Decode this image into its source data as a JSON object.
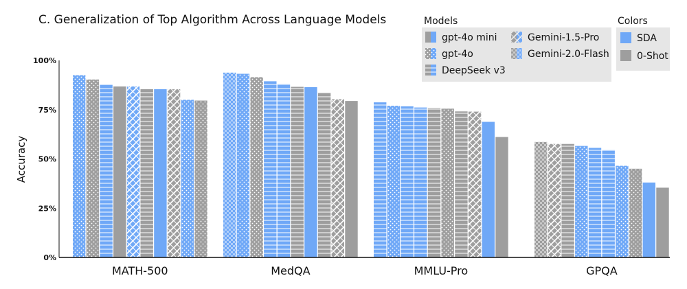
{
  "chart_data": {
    "type": "bar",
    "title": "C.  Generalization of Top Algorithm Across Language Models",
    "ylabel": "Accuracy",
    "xlabel": "",
    "ylim": [
      0,
      100
    ],
    "yticks": [
      0,
      25,
      50,
      75,
      100
    ],
    "ytick_labels": [
      "0%",
      "25%",
      "50%",
      "75%",
      "100%"
    ],
    "categories": [
      "MATH-500",
      "MedQA",
      "MMLU-Pro",
      "GPQA"
    ],
    "colors": {
      "SDA": "#6fa8f7",
      "0-Shot": "#9e9e9e"
    },
    "legend": {
      "models_title": "Models",
      "colors_title": "Colors",
      "models": [
        {
          "name": "gpt-4o mini",
          "pattern": "solid"
        },
        {
          "name": "Gemini-1.5-Pro",
          "pattern": "diag"
        },
        {
          "name": "gpt-4o",
          "pattern": "dots"
        },
        {
          "name": "Gemini-2.0-Flash",
          "pattern": "checker"
        },
        {
          "name": "DeepSeek v3",
          "pattern": "hlines"
        }
      ],
      "colors": [
        {
          "name": "SDA",
          "color": "#6fa8f7"
        },
        {
          "name": "0-Shot",
          "color": "#9e9e9e"
        }
      ],
      "placement": "top-right"
    },
    "groups": [
      {
        "category": "MATH-500",
        "bars": [
          {
            "model": "gpt-4o",
            "method": "SDA",
            "value": 92.5
          },
          {
            "model": "gpt-4o",
            "method": "0-Shot",
            "value": 90.3
          },
          {
            "model": "DeepSeek v3",
            "method": "SDA",
            "value": 87.6
          },
          {
            "model": "gpt-4o mini",
            "method": "0-Shot",
            "value": 86.8
          },
          {
            "model": "Gemini-1.5-Pro",
            "method": "SDA",
            "value": 86.8
          },
          {
            "model": "DeepSeek v3",
            "method": "0-Shot",
            "value": 85.4
          },
          {
            "model": "gpt-4o mini",
            "method": "SDA",
            "value": 85.4
          },
          {
            "model": "Gemini-1.5-Pro",
            "method": "0-Shot",
            "value": 85.4
          },
          {
            "model": "gpt-4o",
            "method": "SDA",
            "value": 80.0
          },
          {
            "model": "gpt-4o",
            "method": "0-Shot",
            "value": 79.6
          }
        ]
      },
      {
        "category": "MedQA",
        "bars": [
          {
            "model": "Gemini-2.0-Flash",
            "method": "SDA",
            "value": 93.8
          },
          {
            "model": "gpt-4o",
            "method": "SDA",
            "value": 93.2
          },
          {
            "model": "gpt-4o",
            "method": "0-Shot",
            "value": 91.5
          },
          {
            "model": "DeepSeek v3",
            "method": "SDA",
            "value": 89.4
          },
          {
            "model": "DeepSeek v3",
            "method": "SDA",
            "value": 88.1
          },
          {
            "model": "DeepSeek v3",
            "method": "0-Shot",
            "value": 86.6
          },
          {
            "model": "gpt-4o mini",
            "method": "SDA",
            "value": 86.4
          },
          {
            "model": "DeepSeek v3",
            "method": "0-Shot",
            "value": 83.7
          },
          {
            "model": "Gemini-1.5-Pro",
            "method": "0-Shot",
            "value": 80.3
          },
          {
            "model": "gpt-4o mini",
            "method": "0-Shot",
            "value": 79.4
          }
        ]
      },
      {
        "category": "MMLU-Pro",
        "bars": [
          {
            "model": "DeepSeek v3",
            "method": "SDA",
            "value": 78.7
          },
          {
            "model": "gpt-4o",
            "method": "SDA",
            "value": 77.0
          },
          {
            "model": "DeepSeek v3",
            "method": "SDA",
            "value": 76.7
          },
          {
            "model": "DeepSeek v3",
            "method": "SDA",
            "value": 76.1
          },
          {
            "model": "DeepSeek v3",
            "method": "0-Shot",
            "value": 75.8
          },
          {
            "model": "gpt-4o",
            "method": "0-Shot",
            "value": 75.5
          },
          {
            "model": "DeepSeek v3",
            "method": "0-Shot",
            "value": 74.1
          },
          {
            "model": "Gemini-1.5-Pro",
            "method": "0-Shot",
            "value": 74.0
          },
          {
            "model": "gpt-4o mini",
            "method": "SDA",
            "value": 68.8
          },
          {
            "model": "gpt-4o mini",
            "method": "0-Shot",
            "value": 61.1
          }
        ]
      },
      {
        "category": "GPQA",
        "bars": [
          {
            "model": "Gemini-2.0-Flash",
            "method": "0-Shot",
            "value": 58.6
          },
          {
            "model": "Gemini-1.5-Pro",
            "method": "0-Shot",
            "value": 57.6
          },
          {
            "model": "DeepSeek v3",
            "method": "0-Shot",
            "value": 57.6
          },
          {
            "model": "gpt-4o",
            "method": "SDA",
            "value": 56.6
          },
          {
            "model": "DeepSeek v3",
            "method": "SDA",
            "value": 55.6
          },
          {
            "model": "DeepSeek v3",
            "method": "SDA",
            "value": 54.6
          },
          {
            "model": "gpt-4o",
            "method": "SDA",
            "value": 46.5
          },
          {
            "model": "gpt-4o",
            "method": "0-Shot",
            "value": 45.0
          },
          {
            "model": "gpt-4o mini",
            "method": "SDA",
            "value": 38.0
          },
          {
            "model": "gpt-4o mini",
            "method": "0-Shot",
            "value": 35.4
          }
        ]
      }
    ]
  }
}
